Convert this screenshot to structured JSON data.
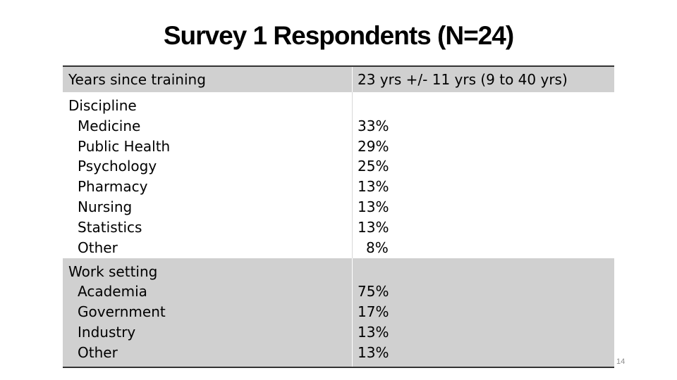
{
  "slide": {
    "title": "Survey 1 Respondents (N=24)",
    "page_number": "14"
  },
  "table": {
    "years": {
      "label": "Years since training",
      "value": "23 yrs +/- 11 yrs (9 to 40 yrs)"
    },
    "discipline": {
      "label": "Discipline",
      "items": [
        {
          "name": "Medicine",
          "value": "33%"
        },
        {
          "name": "Public Health",
          "value": "29%"
        },
        {
          "name": "Psychology",
          "value": "25%"
        },
        {
          "name": "Pharmacy",
          "value": "13%"
        },
        {
          "name": "Nursing",
          "value": "13%"
        },
        {
          "name": "Statistics",
          "value": "13%"
        },
        {
          "name": "Other",
          "value": "8%"
        }
      ]
    },
    "work_setting": {
      "label": "Work setting",
      "items": [
        {
          "name": "Academia",
          "value": "75%"
        },
        {
          "name": "Government",
          "value": "17%"
        },
        {
          "name": "Industry",
          "value": "13%"
        },
        {
          "name": "Other",
          "value": "13%"
        }
      ]
    }
  }
}
